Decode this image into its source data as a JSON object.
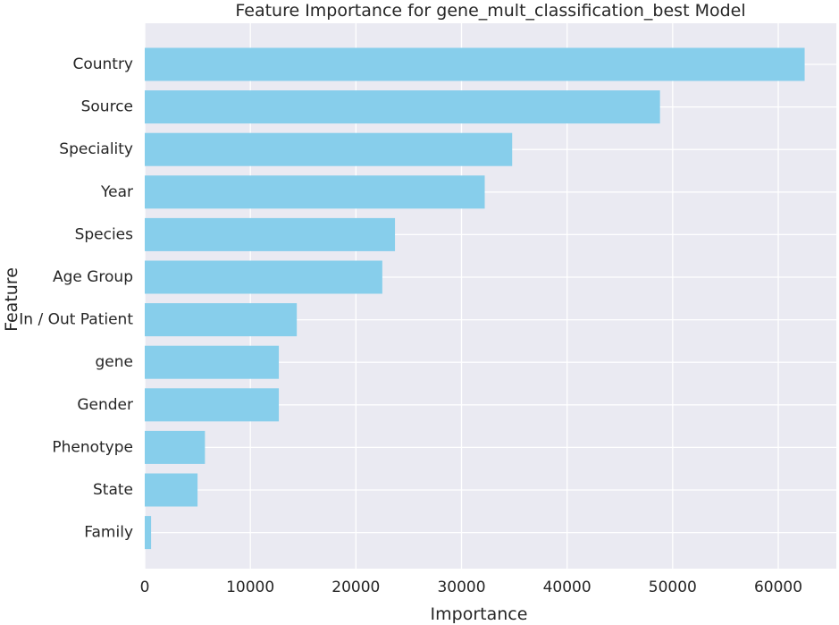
{
  "chart_data": {
    "type": "bar",
    "orientation": "horizontal",
    "title": "Feature Importance for gene_mult_classification_best Model",
    "xlabel": "Importance",
    "ylabel": "Feature",
    "categories": [
      "Country",
      "Source",
      "Speciality",
      "Year",
      "Species",
      "Age Group",
      "In / Out Patient",
      "gene",
      "Gender",
      "Phenotype",
      "State",
      "Family"
    ],
    "values": [
      62500,
      48800,
      34800,
      32200,
      23700,
      22500,
      14400,
      12700,
      12700,
      5700,
      5000,
      600
    ],
    "xlim": [
      0,
      65500
    ],
    "xticks": [
      0,
      10000,
      20000,
      30000,
      40000,
      50000,
      60000
    ],
    "xtick_labels": [
      "0",
      "10000",
      "20000",
      "30000",
      "40000",
      "50000",
      "60000"
    ],
    "grid": true,
    "colors": {
      "bar": "#87ceeb",
      "plot_background": "#eaeaf2",
      "grid": "#ffffff",
      "text": "#262626"
    }
  }
}
